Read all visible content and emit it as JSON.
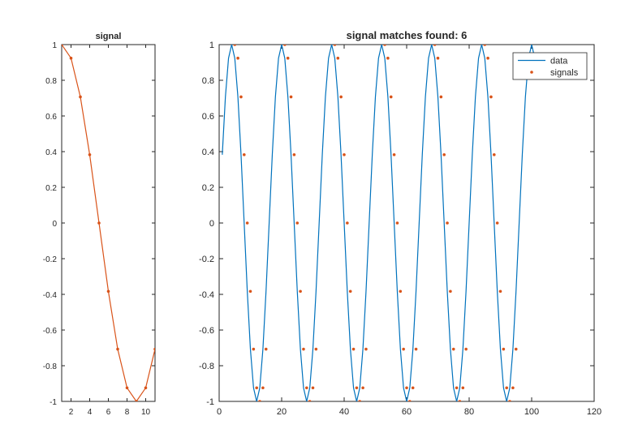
{
  "chart_data": [
    {
      "type": "line",
      "title": "signal",
      "xlabel": "",
      "ylabel": "",
      "xlim": [
        1,
        11
      ],
      "ylim": [
        -1,
        1
      ],
      "xticks": [
        2,
        4,
        6,
        8,
        10
      ],
      "xtick_labels": [
        "2",
        "4",
        "6",
        "8",
        "10"
      ],
      "yticks": [
        1,
        0.8,
        0.6,
        0.4,
        0.2,
        0,
        -0.2,
        -0.4,
        -0.6,
        -0.8,
        -1
      ],
      "ytick_labels": [
        "1",
        "0.8",
        "0.6",
        "0.4",
        "0.2",
        "0",
        "-0.2",
        "-0.4",
        "-0.6",
        "-0.8",
        "-1"
      ],
      "grid": false,
      "series": [
        {
          "color": "#D95319",
          "marker": "dot",
          "x": [
            1,
            2,
            3,
            4,
            5,
            6,
            7,
            8,
            9,
            10,
            11
          ],
          "y": [
            1,
            0.924,
            0.707,
            0.383,
            0,
            -0.383,
            -0.707,
            -0.924,
            -1,
            -0.924,
            -0.707
          ]
        }
      ]
    },
    {
      "type": "line",
      "title": "signal matches found: 6",
      "xlabel": "",
      "ylabel": "",
      "xlim": [
        0,
        120
      ],
      "ylim": [
        -1,
        1
      ],
      "xticks": [
        0,
        20,
        40,
        60,
        80,
        100,
        120
      ],
      "xtick_labels": [
        "0",
        "20",
        "40",
        "60",
        "80",
        "100",
        "120"
      ],
      "yticks": [
        1,
        0.8,
        0.6,
        0.4,
        0.2,
        0,
        -0.2,
        -0.4,
        -0.6,
        -0.8,
        -1
      ],
      "ytick_labels": [
        "1",
        "0.8",
        "0.6",
        "0.4",
        "0.2",
        "0",
        "-0.2",
        "-0.4",
        "-0.6",
        "-0.8",
        "-1"
      ],
      "grid": false,
      "legend_position": "top-right",
      "series": [
        {
          "name": "data",
          "color": "#0072BD",
          "function": "sin(2*pi*x/16)",
          "x_range": [
            1,
            101
          ]
        },
        {
          "name": "signals",
          "color": "#D95319",
          "marker": "dot",
          "match_starts": [
            5,
            21,
            37,
            53,
            69,
            85
          ],
          "pattern_y": [
            1,
            0.924,
            0.707,
            0.383,
            0,
            -0.383,
            -0.707,
            -0.924,
            -1,
            -0.924,
            -0.707
          ]
        }
      ]
    }
  ]
}
